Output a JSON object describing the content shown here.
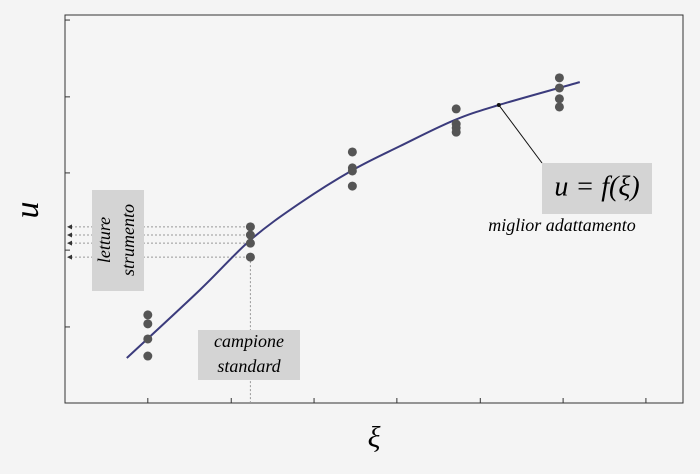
{
  "chart_data": {
    "type": "scatter",
    "xlabel": "ξ",
    "ylabel": "u",
    "xlim": [
      0,
      10
    ],
    "ylim": [
      0,
      10
    ],
    "xticks": [
      1.34,
      2.69,
      4.03,
      5.37,
      6.72,
      8.06,
      9.4
    ],
    "yticks": [
      1.96,
      3.94,
      5.93,
      7.89,
      9.87
    ],
    "points": {
      "color": "#555555",
      "x": [
        1.34,
        1.34,
        1.34,
        1.34,
        3.0,
        3.0,
        3.0,
        3.0,
        4.65,
        4.65,
        4.65,
        4.65,
        6.33,
        6.33,
        6.33,
        6.33,
        8.0,
        8.0,
        8.0,
        8.0
      ],
      "y": [
        2.27,
        2.04,
        1.65,
        1.21,
        4.54,
        4.33,
        4.12,
        3.76,
        6.47,
        6.06,
        5.98,
        5.59,
        7.58,
        7.19,
        7.09,
        6.98,
        8.38,
        8.12,
        7.84,
        7.63
      ]
    },
    "curve": {
      "color": "#3b3b7c",
      "x": [
        1.0,
        2.18,
        3.0,
        3.8,
        4.65,
        5.42,
        6.3,
        7.02,
        8.33
      ],
      "y": [
        1.16,
        2.91,
        4.2,
        5.15,
        6.0,
        6.62,
        7.29,
        7.68,
        8.27
      ]
    },
    "annotations": {
      "readings": [
        "letture",
        "strumento"
      ],
      "standard": [
        "campione",
        "standard"
      ],
      "fit_formula": "u = f(ξ)",
      "fit_label": "miglior adattamento"
    }
  }
}
